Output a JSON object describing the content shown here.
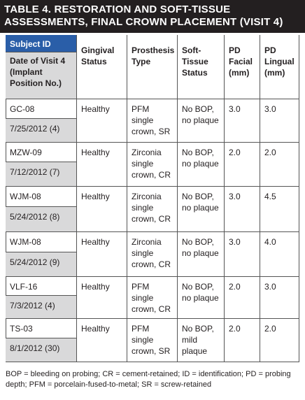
{
  "title": "TABLE 4. RESTORATION AND SOFT-TISSUE ASSESSMENTS, FINAL CROWN PLACEMENT (VISIT 4)",
  "table": {
    "header": {
      "subject_id": "Subject ID",
      "date": "Date of Visit 4 (Implant Position No.)",
      "columns": [
        "Gingival Status",
        "Prosthesis Type",
        "Soft-Tissue Status",
        "PD Facial (mm)",
        "PD Lingual (mm)"
      ]
    },
    "rows": [
      {
        "subject": "GC-08",
        "date": "7/25/2012 (4)",
        "cells": [
          "Healthy",
          "PFM single crown, SR",
          "No BOP, no plaque",
          "3.0",
          "3.0"
        ]
      },
      {
        "subject": "MZW-09",
        "date": "7/12/2012 (7)",
        "cells": [
          "Healthy",
          "Zirconia single crown, CR",
          "No BOP, no plaque",
          "2.0",
          "2.0"
        ]
      },
      {
        "subject": "WJM-08",
        "date": "5/24/2012 (8)",
        "cells": [
          "Healthy",
          "Zirconia single crown, CR",
          "No BOP, no plaque",
          "3.0",
          "4.5"
        ]
      },
      {
        "subject": "WJM-08",
        "date": "5/24/2012 (9)",
        "cells": [
          "Healthy",
          "Zirconia single crown, CR",
          "No BOP, no plaque",
          "3.0",
          "4.0"
        ]
      },
      {
        "subject": "VLF-16",
        "date": "7/3/2012 (4)",
        "cells": [
          "Healthy",
          "PFM single crown, CR",
          "No BOP, no plaque",
          "2.0",
          "3.0"
        ]
      },
      {
        "subject": "TS-03",
        "date": "8/1/2012 (30)",
        "cells": [
          "Healthy",
          "PFM single crown, SR",
          "No BOP, mild plaque",
          "2.0",
          "2.0"
        ]
      }
    ]
  },
  "footnote": "BOP = bleeding on probing; CR = cement-retained; ID = identification; PD = probing depth; PFM = porcelain-fused-to-metal; SR = screw-retained"
}
